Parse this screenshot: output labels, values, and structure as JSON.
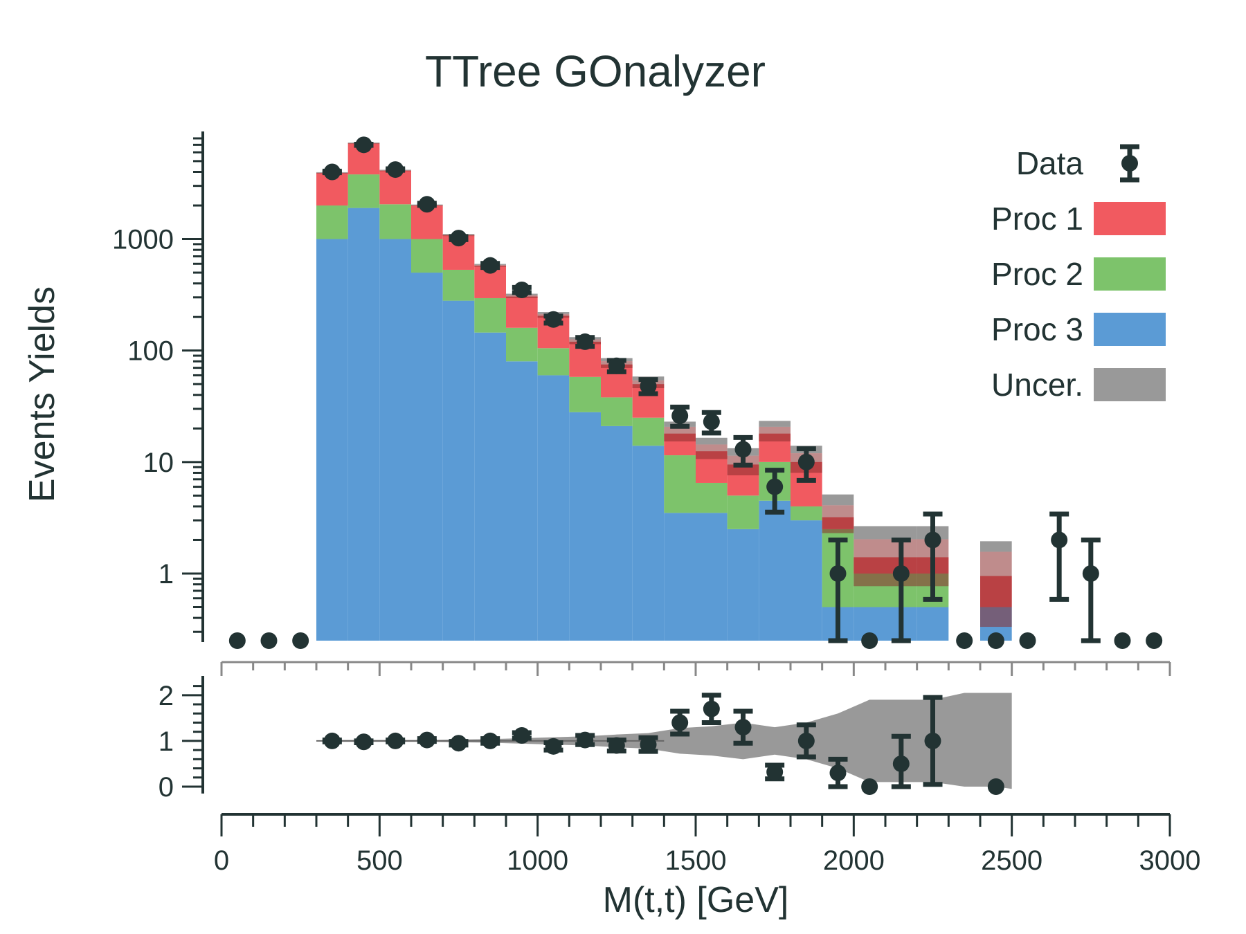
{
  "chart_data": {
    "type": "bar",
    "title": "TTree GOnalyzer",
    "xlabel": "M(t,t) [GeV]",
    "ylabel": "Events Yields",
    "xlim": [
      0,
      3000
    ],
    "ylim": [
      0.25,
      8000
    ],
    "yscale": "log",
    "ratio_ylim": [
      0,
      2.3
    ],
    "x_ticks": [
      "0",
      "500",
      "1000",
      "1500",
      "2000",
      "2500",
      "3000"
    ],
    "y_ticks": [
      "1",
      "10",
      "100",
      "1000"
    ],
    "ratio_y_ticks": [
      "0",
      "1",
      "2"
    ],
    "bin_edges": [
      0,
      100,
      200,
      300,
      400,
      500,
      600,
      700,
      800,
      900,
      1000,
      1100,
      1200,
      1300,
      1400,
      1500,
      1600,
      1700,
      1800,
      1900,
      2000,
      2100,
      2200,
      2300,
      2400,
      2500,
      2600,
      2700,
      2800,
      2900,
      3000
    ],
    "series": [
      {
        "name": "Proc 3",
        "color": "#5b9bd5",
        "values": [
          0,
          0,
          0,
          1000,
          1900,
          1000,
          500,
          280,
          145,
          80,
          60,
          28,
          21,
          14,
          3.5,
          3.5,
          2.5,
          4.5,
          3.0,
          0.5,
          0.5,
          0.5,
          0.5,
          0,
          0.5,
          0,
          0,
          0,
          0,
          0
        ]
      },
      {
        "name": "Proc 2",
        "color": "#7dc36b",
        "values": [
          0,
          0,
          0,
          1000,
          1900,
          1050,
          500,
          250,
          150,
          80,
          45,
          30,
          17,
          11,
          8,
          3,
          2.5,
          5.5,
          1.0,
          2.0,
          0.5,
          0.5,
          0.5,
          0,
          0,
          0,
          0,
          0,
          0,
          0
        ]
      },
      {
        "name": "Proc 1",
        "color": "#f15a60",
        "values": [
          0,
          0,
          0,
          1900,
          3400,
          2050,
          1000,
          550,
          280,
          145,
          100,
          62,
          37,
          25,
          6.5,
          6,
          4.5,
          8,
          6,
          0.7,
          0.4,
          0.4,
          0.4,
          0,
          0.45,
          0,
          0,
          0,
          0,
          0
        ]
      }
    ],
    "uncertainty": {
      "name": "Uncer.",
      "color": "#999999",
      "inner_color": "#8b2e2e",
      "rel_inner": [
        0,
        0,
        0,
        0.01,
        0.01,
        0.01,
        0.01,
        0.015,
        0.02,
        0.03,
        0.04,
        0.05,
        0.07,
        0.08,
        0.15,
        0.15,
        0.2,
        0.15,
        0.2,
        0.28,
        0.45,
        0.45,
        0.45,
        0,
        0.65,
        0,
        0,
        0,
        0,
        0
      ],
      "rel_outer": [
        0,
        0,
        0,
        0.02,
        0.02,
        0.02,
        0.02,
        0.03,
        0.04,
        0.06,
        0.08,
        0.1,
        0.14,
        0.17,
        0.28,
        0.32,
        0.4,
        0.3,
        0.4,
        0.6,
        0.9,
        0.9,
        0.9,
        0,
        1.05,
        0,
        0,
        0,
        0,
        0
      ]
    },
    "data_points": {
      "name": "Data",
      "color": "#223333",
      "x": [
        50,
        150,
        250,
        350,
        450,
        550,
        650,
        750,
        850,
        950,
        1050,
        1150,
        1250,
        1350,
        1450,
        1550,
        1650,
        1750,
        1850,
        1950,
        2050,
        2150,
        2250,
        2350,
        2450,
        2550,
        2650,
        2750,
        2850,
        2950
      ],
      "y": [
        0,
        0,
        0,
        4000,
        7000,
        4200,
        2050,
        1020,
        580,
        350,
        190,
        120,
        73,
        48,
        26,
        23,
        13,
        6,
        10,
        1,
        0,
        1,
        2,
        0,
        0,
        0,
        2,
        1,
        0,
        0
      ]
    },
    "ratio": {
      "x": [
        350,
        450,
        550,
        650,
        750,
        850,
        950,
        1050,
        1150,
        1250,
        1350,
        1450,
        1550,
        1650,
        1750,
        1850,
        1950,
        2050,
        2150,
        2250,
        2450
      ],
      "y": [
        1.0,
        0.98,
        1.0,
        1.02,
        0.95,
        1.0,
        1.12,
        0.88,
        1.02,
        0.9,
        0.92,
        1.4,
        1.7,
        1.3,
        0.32,
        1.0,
        0.3,
        0.0,
        0.5,
        1.0,
        0.0
      ],
      "err": [
        0.02,
        0.02,
        0.02,
        0.03,
        0.04,
        0.05,
        0.06,
        0.08,
        0.1,
        0.12,
        0.15,
        0.25,
        0.3,
        0.35,
        0.15,
        0.35,
        0.3,
        0.0,
        0.6,
        0.95,
        0.0
      ],
      "band_rel": [
        0,
        0,
        0,
        0.02,
        0.02,
        0.02,
        0.02,
        0.03,
        0.04,
        0.06,
        0.08,
        0.1,
        0.14,
        0.17,
        0.28,
        0.32,
        0.4,
        0.3,
        0.4,
        0.6,
        0.9,
        0.9,
        0.9,
        1.05,
        1.05,
        0,
        0,
        0,
        0,
        0
      ]
    },
    "legend": {
      "position": "top-right",
      "entries": [
        {
          "label": "Data",
          "kind": "marker",
          "color": "#223333"
        },
        {
          "label": "Proc 1",
          "kind": "box",
          "color": "#f15a60"
        },
        {
          "label": "Proc 2",
          "kind": "box",
          "color": "#7dc36b"
        },
        {
          "label": "Proc 3",
          "kind": "box",
          "color": "#5b9bd5"
        },
        {
          "label": "Uncer.",
          "kind": "box",
          "color": "#999999"
        }
      ]
    }
  }
}
